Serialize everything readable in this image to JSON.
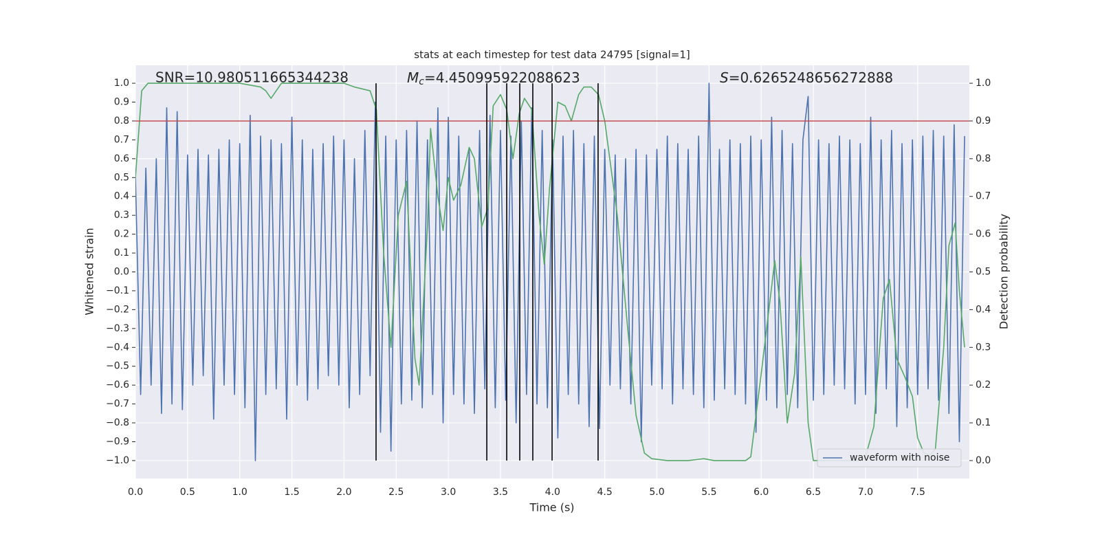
{
  "chart_data": {
    "type": "line",
    "title": "stats at each timestep for test data 24795 [signal=1]",
    "xlabel": "Time (s)",
    "ylabel": "Whitened strain",
    "y2label": "Detection probability",
    "annotations": [
      {
        "text": "SNR=10.980511665344238"
      },
      {
        "symbol": "M",
        "subscript": "c",
        "text": "=4.450995922088623"
      },
      {
        "symbol": "S",
        "text": "=0.6265248656272888"
      }
    ],
    "xlim": [
      0,
      7.996
    ],
    "ylim": [
      -1.095,
      1.095
    ],
    "y2lim": [
      -0.0475,
      1.0475
    ],
    "xticks": [
      {
        "value": 0,
        "label": "0.0"
      },
      {
        "value": 0.5,
        "label": "0.5"
      },
      {
        "value": 1,
        "label": "1.0"
      },
      {
        "value": 1.5,
        "label": "1.5"
      },
      {
        "value": 2,
        "label": "2.0"
      },
      {
        "value": 2.5,
        "label": "2.5"
      },
      {
        "value": 3,
        "label": "3.0"
      },
      {
        "value": 3.5,
        "label": "3.5"
      },
      {
        "value": 4,
        "label": "4.0"
      },
      {
        "value": 4.5,
        "label": "4.5"
      },
      {
        "value": 5,
        "label": "5.0"
      },
      {
        "value": 5.5,
        "label": "5.5"
      },
      {
        "value": 6,
        "label": "6.0"
      },
      {
        "value": 6.5,
        "label": "6.5"
      },
      {
        "value": 7,
        "label": "7.0"
      },
      {
        "value": 7.5,
        "label": "7.5"
      }
    ],
    "yticks": [
      {
        "value": -1,
        "label": "−1.0"
      },
      {
        "value": -0.9,
        "label": "−0.9"
      },
      {
        "value": -0.8,
        "label": "−0.8"
      },
      {
        "value": -0.7,
        "label": "−0.7"
      },
      {
        "value": -0.6,
        "label": "−0.6"
      },
      {
        "value": -0.5,
        "label": "−0.5"
      },
      {
        "value": -0.4,
        "label": "−0.4"
      },
      {
        "value": -0.3,
        "label": "−0.3"
      },
      {
        "value": -0.2,
        "label": "−0.2"
      },
      {
        "value": -0.1,
        "label": "−0.1"
      },
      {
        "value": 0,
        "label": "0.0"
      },
      {
        "value": 0.1,
        "label": "0.1"
      },
      {
        "value": 0.2,
        "label": "0.2"
      },
      {
        "value": 0.3,
        "label": "0.3"
      },
      {
        "value": 0.4,
        "label": "0.4"
      },
      {
        "value": 0.5,
        "label": "0.5"
      },
      {
        "value": 0.6,
        "label": "0.6"
      },
      {
        "value": 0.7,
        "label": "0.7"
      },
      {
        "value": 0.8,
        "label": "0.8"
      },
      {
        "value": 0.9,
        "label": "0.9"
      },
      {
        "value": 1,
        "label": "1.0"
      }
    ],
    "y2ticks": [
      {
        "value": 0,
        "label": "0.0"
      },
      {
        "value": 0.1,
        "label": "0.1"
      },
      {
        "value": 0.2,
        "label": "0.2"
      },
      {
        "value": 0.3,
        "label": "0.3"
      },
      {
        "value": 0.4,
        "label": "0.4"
      },
      {
        "value": 0.5,
        "label": "0.5"
      },
      {
        "value": 0.6,
        "label": "0.6"
      },
      {
        "value": 0.7,
        "label": "0.7"
      },
      {
        "value": 0.8,
        "label": "0.8"
      },
      {
        "value": 0.9,
        "label": "0.9"
      },
      {
        "value": 1,
        "label": "1.0"
      }
    ],
    "grid": true,
    "legend": "lower right",
    "series": [
      {
        "name": "waveform with noise",
        "color": "#4c72b0",
        "x": [
          0,
          0.05,
          0.1,
          0.15,
          0.2,
          0.25,
          0.3,
          0.35,
          0.4,
          0.45,
          0.5,
          0.55,
          0.6,
          0.65,
          0.7,
          0.75,
          0.8,
          0.85,
          0.9,
          0.95,
          1,
          1.05,
          1.1,
          1.15,
          1.2,
          1.25,
          1.3,
          1.35,
          1.4,
          1.45,
          1.5,
          1.55,
          1.6,
          1.65,
          1.7,
          1.75,
          1.8,
          1.85,
          1.9,
          1.95,
          2,
          2.05,
          2.1,
          2.15,
          2.2,
          2.25,
          2.3,
          2.35,
          2.4,
          2.45,
          2.5,
          2.55,
          2.6,
          2.65,
          2.7,
          2.75,
          2.8,
          2.85,
          2.9,
          2.95,
          3,
          3.05,
          3.1,
          3.15,
          3.2,
          3.25,
          3.3,
          3.35,
          3.4,
          3.45,
          3.5,
          3.55,
          3.6,
          3.65,
          3.7,
          3.75,
          3.8,
          3.85,
          3.9,
          3.95,
          4,
          4.05,
          4.1,
          4.15,
          4.2,
          4.25,
          4.3,
          4.35,
          4.4,
          4.45,
          4.5,
          4.55,
          4.6,
          4.65,
          4.7,
          4.75,
          4.8,
          4.85,
          4.9,
          4.95,
          5,
          5.05,
          5.1,
          5.15,
          5.2,
          5.25,
          5.3,
          5.35,
          5.4,
          5.45,
          5.5,
          5.55,
          5.6,
          5.65,
          5.7,
          5.75,
          5.8,
          5.85,
          5.9,
          5.95,
          6,
          6.05,
          6.1,
          6.15,
          6.2,
          6.25,
          6.3,
          6.35,
          6.4,
          6.45,
          6.5,
          6.55,
          6.6,
          6.65,
          6.7,
          6.75,
          6.8,
          6.85,
          6.9,
          6.95,
          7,
          7.05,
          7.1,
          7.15,
          7.2,
          7.25,
          7.3,
          7.35,
          7.4,
          7.45,
          7.5,
          7.55,
          7.6,
          7.65,
          7.7,
          7.75,
          7.8,
          7.85,
          7.9,
          7.95
        ],
        "values": [
          0.5,
          -0.65,
          0.55,
          -0.6,
          0.6,
          -0.75,
          0.87,
          -0.7,
          0.85,
          -0.73,
          0.62,
          -0.6,
          0.65,
          -0.55,
          0.62,
          -0.78,
          0.65,
          -0.6,
          0.7,
          -0.65,
          0.68,
          -0.72,
          0.83,
          -1,
          0.72,
          -0.65,
          0.7,
          -0.62,
          0.68,
          -0.78,
          0.82,
          -0.6,
          0.7,
          -0.68,
          0.65,
          -0.62,
          0.68,
          -0.55,
          0.72,
          -0.6,
          0.7,
          -0.72,
          0.6,
          -0.65,
          0.75,
          -0.55,
          0.9,
          -0.85,
          0.72,
          -0.95,
          0.7,
          -0.7,
          0.75,
          -0.68,
          0.8,
          -0.72,
          0.7,
          -0.65,
          0.87,
          -0.8,
          0.82,
          -0.65,
          0.72,
          -0.7,
          0.65,
          -0.75,
          0.75,
          -0.62,
          0.83,
          -0.72,
          0.75,
          -0.68,
          0.72,
          -0.8,
          0.8,
          -0.65,
          0.87,
          -0.7,
          0.75,
          -0.72,
          0.7,
          -0.88,
          0.72,
          -0.65,
          0.75,
          -0.7,
          0.68,
          -0.82,
          0.72,
          -0.83,
          0.65,
          -0.6,
          0.62,
          -0.62,
          0.6,
          -0.7,
          0.65,
          -0.9,
          0.62,
          -0.6,
          0.65,
          -0.62,
          0.72,
          -0.7,
          0.68,
          -0.62,
          0.65,
          -0.65,
          0.72,
          -0.72,
          1,
          -0.68,
          0.65,
          -0.62,
          0.7,
          -0.65,
          0.68,
          -0.7,
          0.72,
          -0.85,
          0.7,
          -0.68,
          0.82,
          -0.72,
          0.75,
          -0.65,
          0.68,
          -0.72,
          0.7,
          0.93,
          -0.68,
          0.7,
          -0.65,
          0.68,
          -0.6,
          0.72,
          -0.62,
          0.7,
          -0.7,
          0.68,
          -0.65,
          0.82,
          -0.75,
          0.7,
          -0.62,
          0.75,
          -0.82,
          0.68,
          -0.72,
          0.7,
          -0.65,
          0.72,
          -0.62,
          0.75,
          -0.68,
          0.72,
          -0.75,
          0.78,
          -0.9,
          0.72
        ]
      },
      {
        "color": "#55a868",
        "axis": "y2",
        "x": [
          0,
          0.06,
          0.12,
          0.5,
          1,
          1.2,
          1.25,
          1.3,
          1.35,
          1.4,
          1.6,
          2,
          2.1,
          2.25,
          2.31,
          2.38,
          2.45,
          2.52,
          2.6,
          2.68,
          2.72,
          2.8,
          2.83,
          2.9,
          2.95,
          3,
          3.05,
          3.12,
          3.2,
          3.25,
          3.32,
          3.38,
          3.43,
          3.5,
          3.56,
          3.62,
          3.68,
          3.73,
          3.8,
          3.87,
          3.92,
          3.97,
          4.05,
          4.12,
          4.18,
          4.25,
          4.3,
          4.37,
          4.44,
          4.5,
          4.62,
          4.72,
          4.8,
          4.88,
          4.95,
          5.1,
          5.3,
          5.45,
          5.55,
          5.85,
          5.9,
          6,
          6.13,
          6.18,
          6.25,
          6.32,
          6.38,
          6.45,
          6.5,
          6.7,
          6.95,
          7,
          7.08,
          7.17,
          7.23,
          7.3,
          7.38,
          7.45,
          7.5,
          7.56,
          7.62,
          7.67,
          7.75,
          7.8,
          7.86,
          7.9,
          7.95
        ],
        "values": [
          0.75,
          0.98,
          1,
          1,
          1,
          0.99,
          0.98,
          0.96,
          0.98,
          1,
          1,
          1,
          0.99,
          0.98,
          0.93,
          0.55,
          0.3,
          0.65,
          0.74,
          0.27,
          0.2,
          0.62,
          0.88,
          0.7,
          0.61,
          0.75,
          0.69,
          0.73,
          0.83,
          0.8,
          0.62,
          0.67,
          0.94,
          0.97,
          0.93,
          0.8,
          0.92,
          0.96,
          0.93,
          0.65,
          0.52,
          0.72,
          0.95,
          0.94,
          0.9,
          0.97,
          0.99,
          0.99,
          0.97,
          0.9,
          0.65,
          0.35,
          0.12,
          0.02,
          0.005,
          0,
          0,
          0.005,
          0,
          0,
          0.01,
          0.23,
          0.53,
          0.42,
          0.1,
          0.23,
          0.54,
          0.1,
          0,
          0,
          0,
          0.01,
          0.09,
          0.43,
          0.48,
          0.27,
          0.22,
          0.17,
          0.06,
          0.02,
          0.015,
          0.03,
          0.3,
          0.57,
          0.63,
          0.45,
          0.3
        ]
      }
    ],
    "threshold": {
      "value": 0.9,
      "axis": "y2",
      "color": "#c44e52"
    },
    "vlines": {
      "x": [
        2.307,
        3.369,
        3.56,
        3.685,
        3.81,
        3.995,
        4.436
      ],
      "y2range": [
        0,
        1
      ],
      "color": "#000000"
    }
  }
}
